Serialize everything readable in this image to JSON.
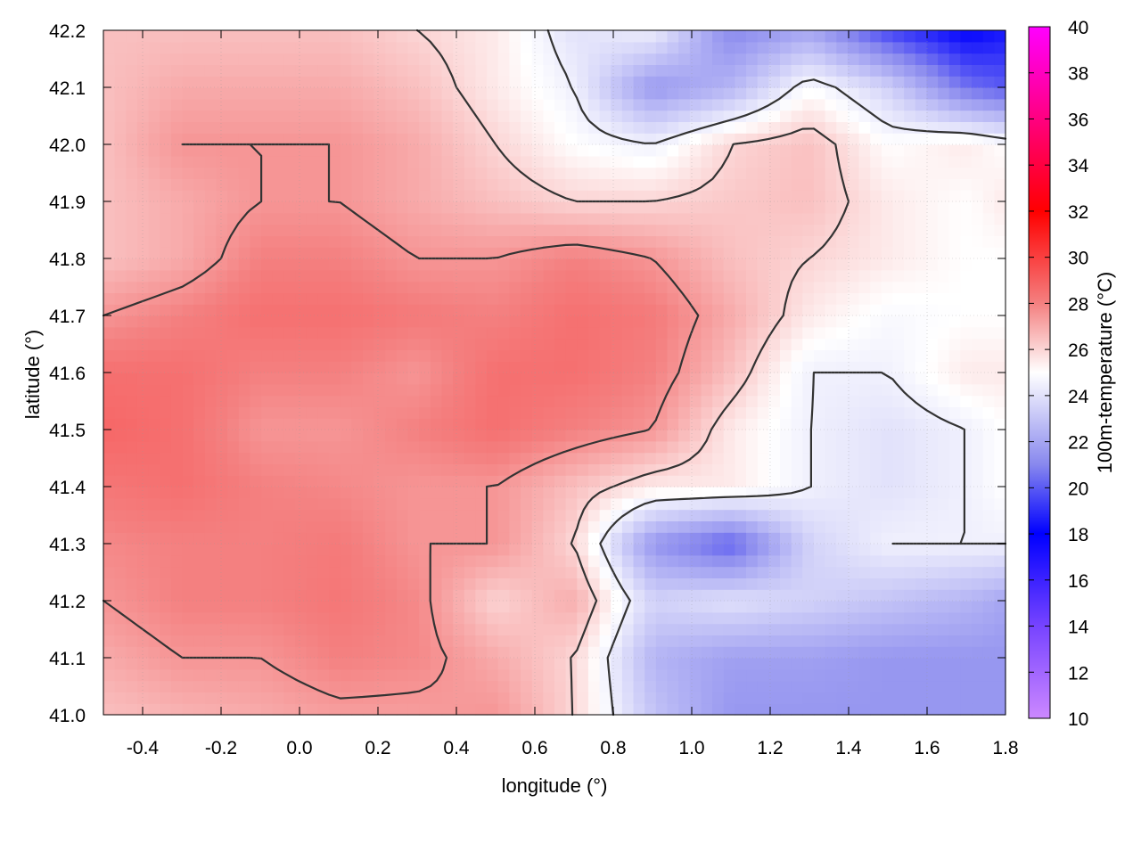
{
  "chart_data": {
    "type": "heatmap",
    "xlabel": "longitude (°)",
    "ylabel": "latitude (°)",
    "colorbar_label": "100m-temperature (°C)",
    "xlim": [
      -0.5,
      1.8
    ],
    "ylim": [
      41.0,
      42.2
    ],
    "x_ticks": [
      -0.4,
      -0.2,
      0.0,
      0.2,
      0.4,
      0.6,
      0.8,
      1.0,
      1.2,
      1.4,
      1.6,
      1.8
    ],
    "x_tick_labels": [
      "-0.4",
      "-0.2",
      "0.0",
      "0.2",
      "0.4",
      "0.6",
      "0.8",
      "1.0",
      "1.2",
      "1.4",
      "1.6",
      "1.8"
    ],
    "y_ticks": [
      41.0,
      41.1,
      41.2,
      41.3,
      41.4,
      41.5,
      41.6,
      41.7,
      41.8,
      41.9,
      42.0,
      42.1,
      42.2
    ],
    "y_tick_labels": [
      "41.0",
      "41.1",
      "41.2",
      "41.3",
      "41.4",
      "41.5",
      "41.6",
      "41.7",
      "41.8",
      "41.9",
      "42.0",
      "42.1",
      "42.2"
    ],
    "colorbar_range": [
      10,
      40
    ],
    "colorbar_ticks": [
      10,
      12,
      14,
      16,
      18,
      20,
      22,
      24,
      26,
      28,
      30,
      32,
      34,
      36,
      38,
      40
    ],
    "colorbar_tick_labels": [
      "10",
      "12",
      "14",
      "16",
      "18",
      "20",
      "22",
      "24",
      "26",
      "28",
      "30",
      "32",
      "34",
      "36",
      "38",
      "40"
    ],
    "colormap": [
      {
        "value": 10,
        "color": "#cc88ff"
      },
      {
        "value": 14,
        "color": "#7744ff"
      },
      {
        "value": 18,
        "color": "#0000ff"
      },
      {
        "value": 21,
        "color": "#8888ee"
      },
      {
        "value": 25,
        "color": "#ffffff"
      },
      {
        "value": 28,
        "color": "#f48080"
      },
      {
        "value": 32,
        "color": "#ff0000"
      },
      {
        "value": 40,
        "color": "#ff00ff"
      }
    ],
    "grid": true,
    "contours": true,
    "z_grid": {
      "lon": [
        -0.5,
        -0.3,
        -0.1,
        0.1,
        0.3,
        0.5,
        0.7,
        0.9,
        1.1,
        1.3,
        1.5,
        1.7,
        1.8
      ],
      "lat": [
        41.0,
        41.1,
        41.2,
        41.3,
        41.4,
        41.5,
        41.6,
        41.7,
        41.8,
        41.9,
        42.0,
        42.1,
        42.2
      ],
      "values": [
        [
          26.5,
          26.8,
          27.0,
          27.3,
          27.3,
          27.5,
          26.0,
          23.0,
          21.5,
          21.5,
          21.5,
          21.5,
          21.5
        ],
        [
          27.0,
          27.5,
          27.5,
          28.0,
          27.8,
          27.0,
          26.0,
          22.5,
          21.8,
          21.8,
          21.5,
          21.5,
          21.5
        ],
        [
          27.5,
          28.0,
          28.0,
          28.3,
          27.8,
          26.0,
          27.0,
          23.5,
          24.0,
          23.5,
          23.0,
          22.5,
          22.0
        ],
        [
          27.8,
          28.0,
          28.0,
          28.2,
          27.5,
          27.5,
          26.0,
          21.5,
          20.0,
          23.5,
          24.5,
          24.5,
          24.5
        ],
        [
          28.3,
          28.5,
          28.0,
          27.8,
          27.5,
          27.5,
          26.5,
          25.5,
          25.5,
          24.5,
          24.0,
          24.5,
          25.0
        ],
        [
          28.8,
          28.5,
          27.5,
          27.5,
          28.0,
          28.5,
          28.0,
          27.5,
          25.5,
          24.5,
          24.0,
          24.5,
          25.0
        ],
        [
          28.5,
          28.5,
          28.0,
          28.0,
          27.5,
          28.5,
          28.5,
          28.0,
          26.5,
          24.5,
          24.5,
          25.5,
          25.5
        ],
        [
          27.5,
          28.0,
          28.5,
          28.5,
          28.2,
          28.0,
          28.5,
          28.2,
          27.0,
          25.5,
          24.8,
          25.0,
          25.0
        ],
        [
          26.5,
          27.0,
          28.0,
          28.0,
          27.5,
          27.5,
          28.0,
          27.5,
          26.5,
          26.0,
          25.5,
          25.0,
          25.0
        ],
        [
          26.5,
          27.0,
          27.5,
          27.5,
          27.0,
          26.5,
          26.0,
          26.0,
          26.3,
          26.5,
          25.5,
          25.0,
          25.5
        ],
        [
          26.5,
          27.5,
          27.5,
          27.5,
          27.0,
          26.0,
          25.0,
          24.5,
          26.0,
          26.5,
          25.0,
          25.5,
          25.0
        ],
        [
          26.5,
          27.0,
          27.0,
          27.0,
          26.5,
          25.5,
          24.5,
          21.5,
          22.5,
          25.0,
          23.5,
          20.5,
          20.0
        ],
        [
          26.5,
          26.5,
          26.5,
          26.5,
          26.0,
          25.5,
          24.0,
          24.5,
          21.0,
          22.0,
          19.5,
          18.0,
          18.5
        ]
      ]
    },
    "contour_levels": [
      24.5,
      26.0,
      27.5
    ]
  }
}
